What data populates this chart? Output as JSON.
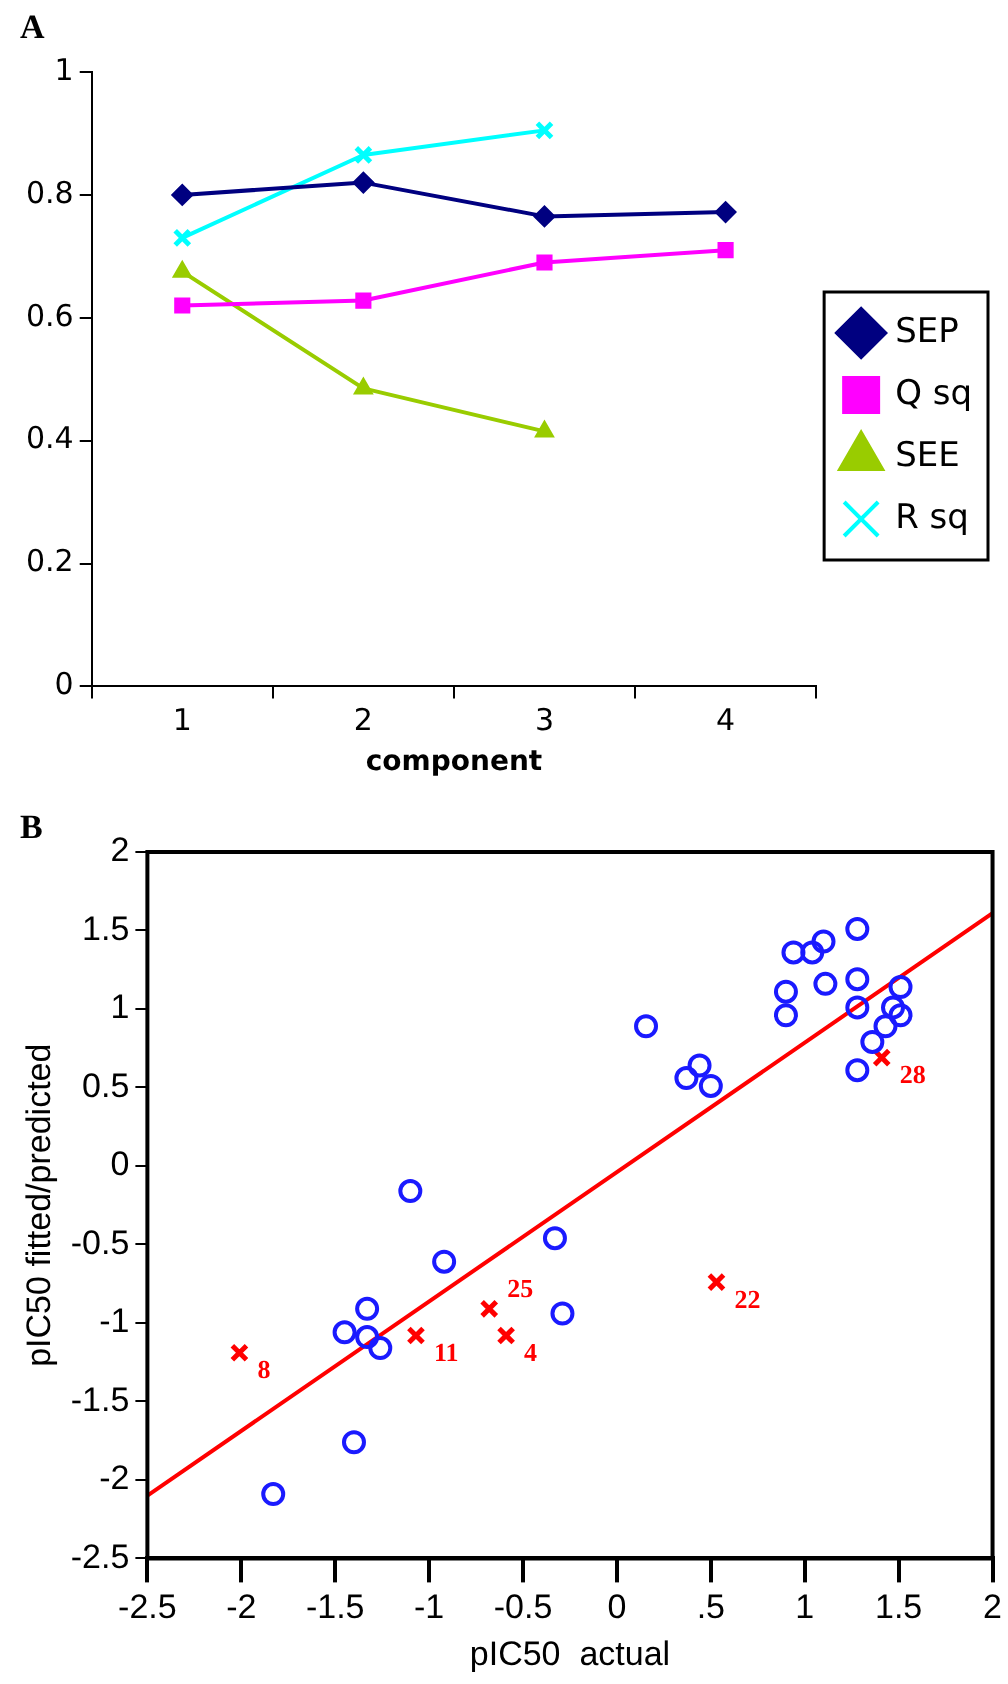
{
  "chart_data": [
    {
      "type": "line",
      "title": "A",
      "xlabel": "component",
      "categories": [
        "1",
        "2",
        "3",
        "4"
      ],
      "ylim": [
        0,
        1
      ],
      "yticks": [
        0,
        0.2,
        0.4,
        0.6,
        0.8,
        1
      ],
      "grid": false,
      "legend": "right",
      "line_style": "solid",
      "series": [
        {
          "name": "SEP",
          "color": "#000080",
          "marker": "diamond",
          "values": [
            0.8,
            0.82,
            0.765,
            0.772
          ]
        },
        {
          "name": "Q sq",
          "color": "#ff00ff",
          "marker": "square",
          "values": [
            0.62,
            0.628,
            0.69,
            0.71
          ]
        },
        {
          "name": "SEE",
          "color": "#99cc00",
          "marker": "triangle",
          "values": [
            0.675,
            0.485,
            0.415,
            null
          ]
        },
        {
          "name": "R sq",
          "color": "#00ffff",
          "marker": "cross",
          "values": [
            0.73,
            0.865,
            0.905,
            null
          ]
        }
      ]
    },
    {
      "type": "scatter",
      "title": "B",
      "xlabel": "pIC50  actual",
      "ylabel": "pIC50 fitted/predicted",
      "xlim": [
        -2.5,
        2
      ],
      "ylim": [
        -2.5,
        2
      ],
      "xticks": [
        -2.5,
        -2,
        -1.5,
        -1,
        -0.5,
        0,
        {
          "value": 0.5,
          "label": ".5"
        },
        1,
        1.5,
        2
      ],
      "yticks": [
        -2.5,
        -2,
        -1.5,
        -1,
        -0.5,
        0,
        0.5,
        1,
        1.5,
        2
      ],
      "grid": false,
      "legend": false,
      "annotations": [
        {
          "text": "8",
          "x": -2.01,
          "y": -1.19
        },
        {
          "text": "11",
          "x": -1.07,
          "y": -1.08
        },
        {
          "text": "25",
          "x": -0.68,
          "y": -0.91
        },
        {
          "text": "4",
          "x": -0.59,
          "y": -1.08
        },
        {
          "text": "22",
          "x": 0.53,
          "y": -0.74
        },
        {
          "text": "28",
          "x": 1.41,
          "y": 0.69
        }
      ],
      "series": [
        {
          "color": "#1a1aff",
          "marker": "circle",
          "x": [
            -1.1,
            -0.92,
            -1.33,
            -1.45,
            -1.33,
            -1.26,
            -1.4,
            -1.83,
            -0.33,
            -0.29,
            0.155,
            0.37,
            0.44,
            0.5,
            0.9,
            0.9,
            0.94,
            1.04,
            1.1,
            1.11,
            1.28,
            1.28,
            1.28,
            1.28,
            1.36,
            1.43,
            1.47,
            1.51,
            1.51
          ],
          "values": [
            -0.16,
            -0.61,
            -0.91,
            -1.06,
            -1.09,
            -1.16,
            -1.76,
            -2.09,
            -0.46,
            -0.94,
            0.89,
            0.56,
            0.64,
            0.51,
            1.11,
            0.96,
            1.36,
            1.36,
            1.43,
            1.16,
            1.51,
            1.19,
            1.01,
            0.61,
            0.79,
            0.89,
            1.01,
            1.14,
            0.96
          ]
        },
        {
          "color": "#ff0000",
          "marker": "cross",
          "x": [
            -2.01,
            -1.07,
            -0.68,
            -0.59,
            0.53,
            1.41
          ],
          "values": [
            -1.19,
            -1.08,
            -0.91,
            -1.08,
            -0.74,
            0.69
          ]
        },
        {
          "type": "line",
          "color": "#ff0000",
          "marker": "none",
          "line_style": "solid",
          "x": [
            -2.5,
            2
          ],
          "values": [
            -2.1,
            1.61
          ]
        }
      ]
    }
  ]
}
